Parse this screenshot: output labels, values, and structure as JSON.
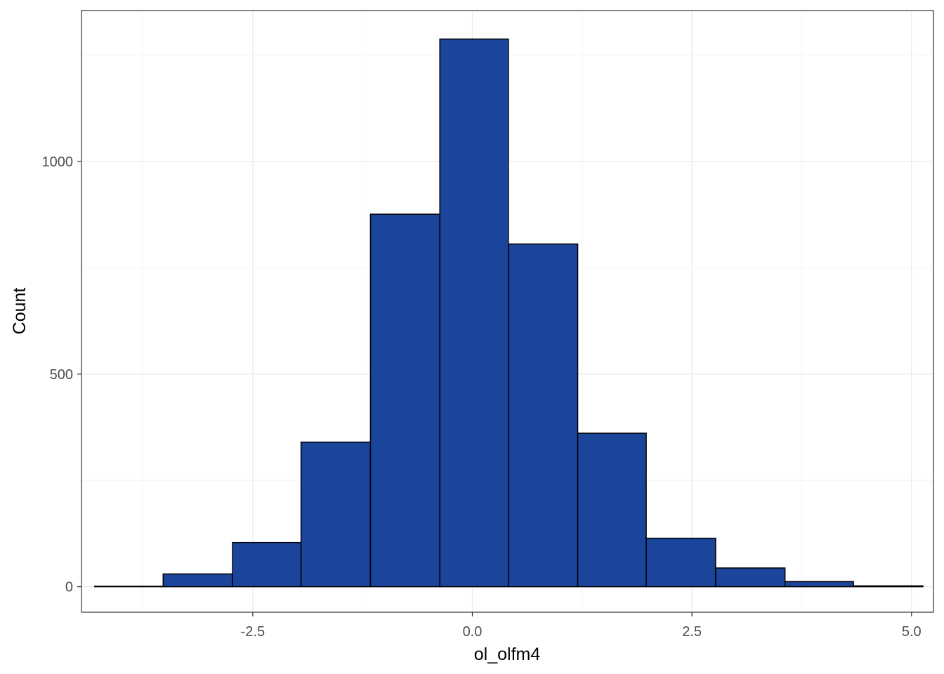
{
  "chart_data": {
    "type": "bar",
    "subtype": "histogram",
    "title": "",
    "xlabel": "ol_olfm4",
    "ylabel": "Count",
    "xlim": [
      -4.45,
      5.25
    ],
    "ylim": [
      -60,
      1355
    ],
    "x_ticks": [
      -2.5,
      0.0,
      2.5,
      5.0
    ],
    "x_tick_labels": [
      "-2.5",
      "0.0",
      "2.5",
      "5.0"
    ],
    "y_ticks": [
      0,
      500,
      1000
    ],
    "y_tick_labels": [
      "0",
      "500",
      "1000"
    ],
    "grid": true,
    "bins": [
      {
        "x0": -4.3,
        "x1": -3.52,
        "count": 1
      },
      {
        "x0": -3.52,
        "x1": -2.73,
        "count": 30
      },
      {
        "x0": -2.73,
        "x1": -1.95,
        "count": 104
      },
      {
        "x0": -1.95,
        "x1": -1.16,
        "count": 340
      },
      {
        "x0": -1.16,
        "x1": -0.37,
        "count": 876
      },
      {
        "x0": -0.37,
        "x1": 0.41,
        "count": 1288
      },
      {
        "x0": 0.41,
        "x1": 1.2,
        "count": 806
      },
      {
        "x0": 1.2,
        "x1": 1.98,
        "count": 361
      },
      {
        "x0": 1.98,
        "x1": 2.77,
        "count": 114
      },
      {
        "x0": 2.77,
        "x1": 3.56,
        "count": 44
      },
      {
        "x0": 3.56,
        "x1": 4.34,
        "count": 12
      },
      {
        "x0": 4.34,
        "x1": 5.13,
        "count": 2
      }
    ],
    "colors": {
      "bar_fill": "#1a459a",
      "bar_stroke": "#000000",
      "grid_major": "#ebebeb",
      "grid_minor": "#f5f5f5",
      "panel_border": "#333333",
      "tick_text": "#4d4d4d"
    }
  }
}
